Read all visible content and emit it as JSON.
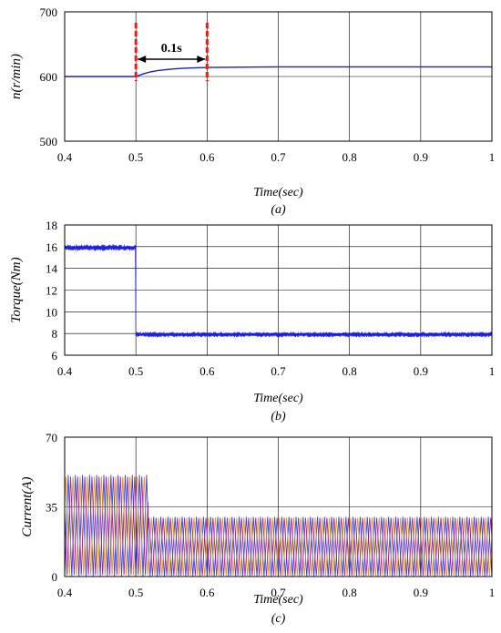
{
  "chart_data": [
    {
      "type": "line",
      "ylabel": "n(r/min)",
      "xlabel": "Time(sec)",
      "caption": "(a)",
      "xlim": [
        0.4,
        1.0
      ],
      "ylim": [
        500,
        700
      ],
      "x_ticks": [
        "0.4",
        "0.5",
        "0.6",
        "0.7",
        "0.8",
        "0.9",
        "1"
      ],
      "y_ticks": [
        "500",
        "600",
        "700"
      ],
      "grid": true,
      "series": [
        {
          "color": "#1f1fb4",
          "points": [
            [
              0.4,
              600
            ],
            [
              0.49,
              600
            ],
            [
              0.5,
              600
            ],
            [
              0.51,
              604
            ],
            [
              0.52,
              607
            ],
            [
              0.53,
              609
            ],
            [
              0.55,
              611.5
            ],
            [
              0.57,
              613
            ],
            [
              0.6,
              614
            ],
            [
              0.65,
              614.5
            ],
            [
              0.7,
              615
            ],
            [
              1.0,
              615
            ]
          ]
        }
      ],
      "annotation": {
        "label": "0.1s",
        "x_start": 0.5,
        "x_end": 0.6,
        "marker_color": "#e0201f"
      }
    },
    {
      "type": "line",
      "ylabel": "Torque(Nm)",
      "xlabel": "Time(sec)",
      "caption": "(b)",
      "xlim": [
        0.4,
        1.0
      ],
      "ylim": [
        6,
        18
      ],
      "x_ticks": [
        "0.4",
        "0.5",
        "0.6",
        "0.7",
        "0.8",
        "0.9",
        "1"
      ],
      "y_ticks": [
        "6",
        "8",
        "10",
        "12",
        "14",
        "16",
        "18"
      ],
      "grid": true,
      "series": [
        {
          "color": "#1f1fe0",
          "segments": [
            {
              "x_start": 0.4,
              "x_end": 0.5,
              "mean": 15.9,
              "ripple": 0.3
            },
            {
              "x_start": 0.5,
              "x_end": 1.0,
              "mean": 7.9,
              "ripple": 0.25
            }
          ]
        }
      ]
    },
    {
      "type": "line",
      "ylabel": "Current(A)",
      "xlabel": "Time(sec)",
      "caption": "(c)",
      "xlim": [
        0.4,
        1.0
      ],
      "ylim": [
        0,
        70
      ],
      "x_ticks": [
        "0.4",
        "0.5",
        "0.6",
        "0.7",
        "0.8",
        "0.9",
        "1"
      ],
      "y_ticks": [
        "0",
        "35",
        "70"
      ],
      "grid": true,
      "series": [
        {
          "color": "#1f2fd6",
          "phase": 0.0
        },
        {
          "color": "#d98c1a",
          "phase": 0.333
        },
        {
          "color": "#8b1a8b",
          "phase": 0.667
        }
      ],
      "envelope": [
        {
          "x_start": 0.4,
          "x_end": 0.517,
          "peak": 51
        },
        {
          "x_start": 0.517,
          "x_end": 1.0,
          "peak": 30
        }
      ]
    }
  ]
}
